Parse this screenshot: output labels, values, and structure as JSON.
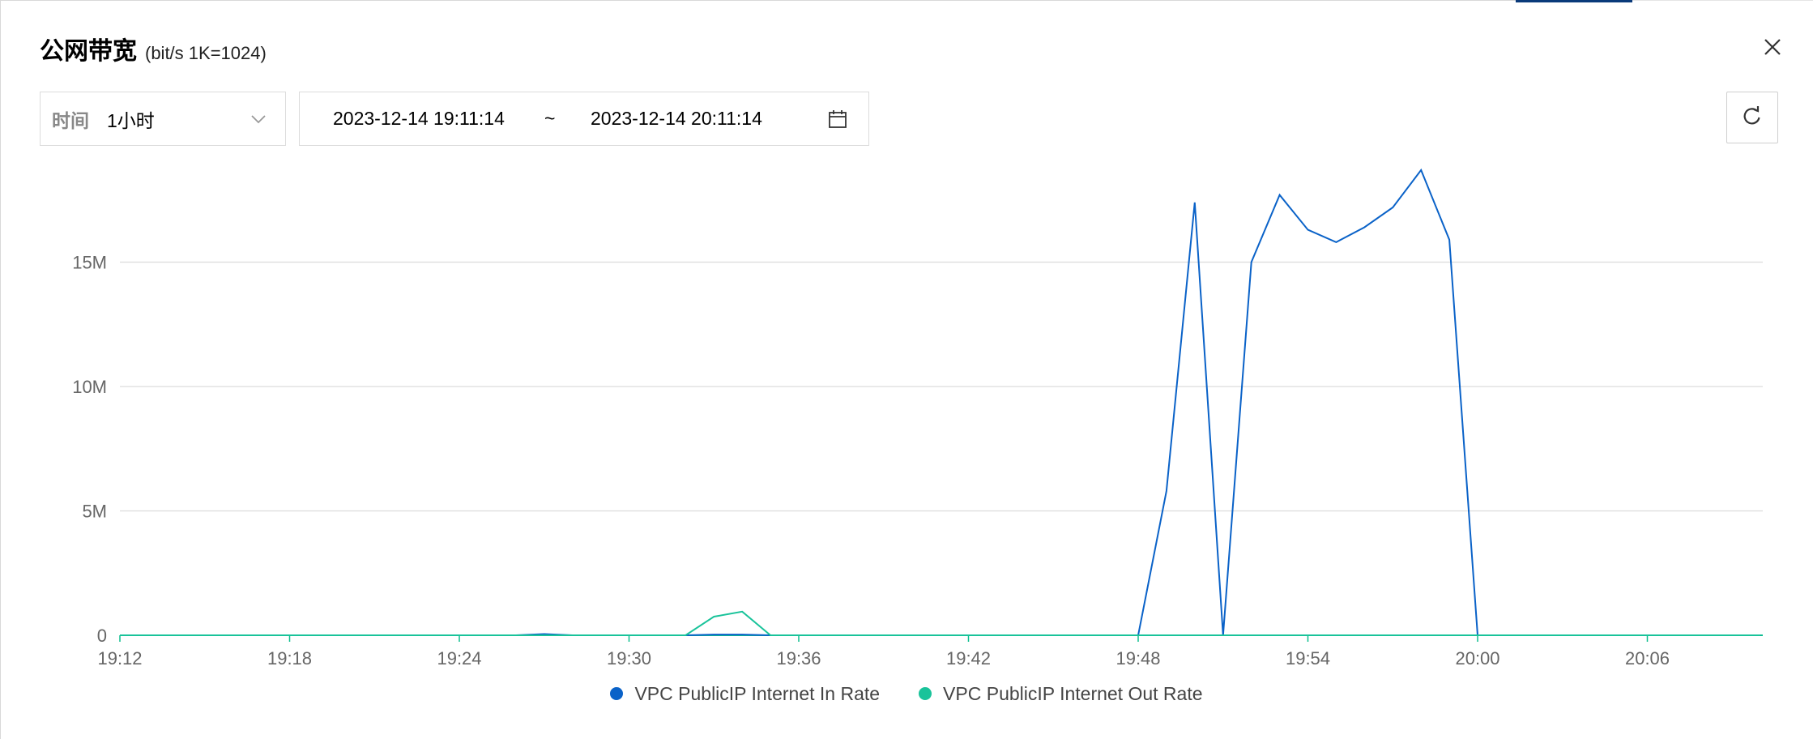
{
  "dialog": {
    "title": "公网带宽",
    "unit_note": "(bit/s  1K=1024)",
    "close_icon": "close-icon"
  },
  "filters": {
    "period_label": "时间",
    "period_value": "1小时",
    "date_start": "2023-12-14 19:11:14",
    "date_separator": "~",
    "date_end": "2023-12-14 20:11:14",
    "calendar_icon": "calendar-icon",
    "refresh_icon": "refresh-icon"
  },
  "colors": {
    "in_rate": "#0a62c8",
    "out_rate": "#19c39a",
    "grid": "#dcdcdc",
    "axis": "#0dbf8f"
  },
  "chart_data": {
    "type": "line",
    "title": "",
    "xlabel": "",
    "ylabel": "",
    "x_ticks": [
      "19:12",
      "19:18",
      "19:24",
      "19:30",
      "19:36",
      "19:42",
      "19:48",
      "19:54",
      "20:00",
      "20:06"
    ],
    "y_ticks": [
      {
        "value": 0,
        "label": "0"
      },
      {
        "value": 5,
        "label": "5M"
      },
      {
        "value": 10,
        "label": "10M"
      },
      {
        "value": 15,
        "label": "15M"
      }
    ],
    "y_unit": "M",
    "xlim": [
      "19:12",
      "20:10"
    ],
    "ylim": [
      0,
      19
    ],
    "grid": true,
    "legend_position": "bottom-center",
    "series": [
      {
        "name": "VPC PublicIP Internet In Rate",
        "color": "#0a62c8",
        "points": [
          {
            "x": "19:12",
            "y": 0
          },
          {
            "x": "19:26",
            "y": 0
          },
          {
            "x": "19:27",
            "y": 0.05
          },
          {
            "x": "19:28",
            "y": 0
          },
          {
            "x": "19:32",
            "y": 0
          },
          {
            "x": "19:33",
            "y": 0.03
          },
          {
            "x": "19:34",
            "y": 0.03
          },
          {
            "x": "19:35",
            "y": 0
          },
          {
            "x": "19:48",
            "y": 0
          },
          {
            "x": "19:49",
            "y": 5.8
          },
          {
            "x": "19:50",
            "y": 17.4
          },
          {
            "x": "19:51",
            "y": 0
          },
          {
            "x": "19:52",
            "y": 15.0
          },
          {
            "x": "19:53",
            "y": 17.7
          },
          {
            "x": "19:54",
            "y": 16.3
          },
          {
            "x": "19:55",
            "y": 15.8
          },
          {
            "x": "19:56",
            "y": 16.4
          },
          {
            "x": "19:57",
            "y": 17.2
          },
          {
            "x": "19:58",
            "y": 18.7
          },
          {
            "x": "19:59",
            "y": 15.9
          },
          {
            "x": "20:00",
            "y": 0
          },
          {
            "x": "20:10",
            "y": 0
          }
        ]
      },
      {
        "name": "VPC PublicIP Internet Out Rate",
        "color": "#19c39a",
        "points": [
          {
            "x": "19:12",
            "y": 0
          },
          {
            "x": "19:32",
            "y": 0
          },
          {
            "x": "19:33",
            "y": 0.75
          },
          {
            "x": "19:34",
            "y": 0.95
          },
          {
            "x": "19:35",
            "y": 0
          },
          {
            "x": "20:10",
            "y": 0
          }
        ]
      }
    ]
  }
}
